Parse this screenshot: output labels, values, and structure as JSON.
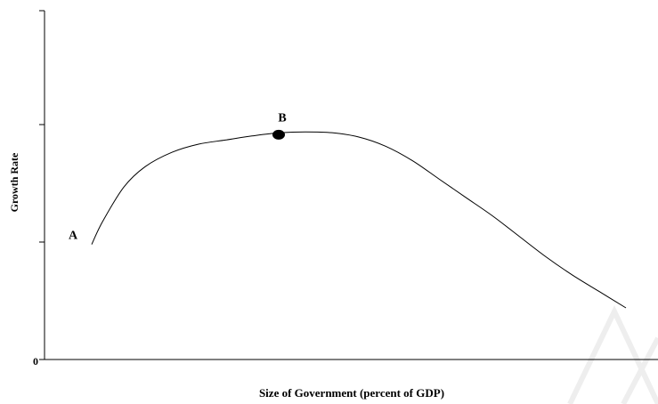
{
  "chart_data": {
    "type": "line",
    "title": "",
    "xlabel": "Size of Government (percent of GDP)",
    "ylabel": "Growth Rate",
    "y_tick_labels": [
      "0"
    ],
    "xlim": [
      0,
      100
    ],
    "ylim": [
      0,
      100
    ],
    "grid": false,
    "legend": "none",
    "series": [
      {
        "x": [
          0,
          2,
          6,
          10,
          15,
          20,
          25,
          30,
          35,
          40,
          45,
          50,
          55,
          60,
          65,
          70,
          75,
          80,
          85,
          90,
          95,
          100
        ],
        "y": [
          31,
          42,
          59,
          69,
          76,
          80,
          82,
          84,
          85.5,
          86,
          85.6,
          83.5,
          79,
          72,
          63,
          54,
          45,
          35,
          25,
          16,
          8,
          0
        ],
        "color": "#000000"
      }
    ],
    "points": [
      {
        "label": "A",
        "x": 0,
        "y": 31,
        "marker": false
      },
      {
        "label": "B",
        "x": 35,
        "y": 85.5,
        "marker": true
      }
    ]
  }
}
